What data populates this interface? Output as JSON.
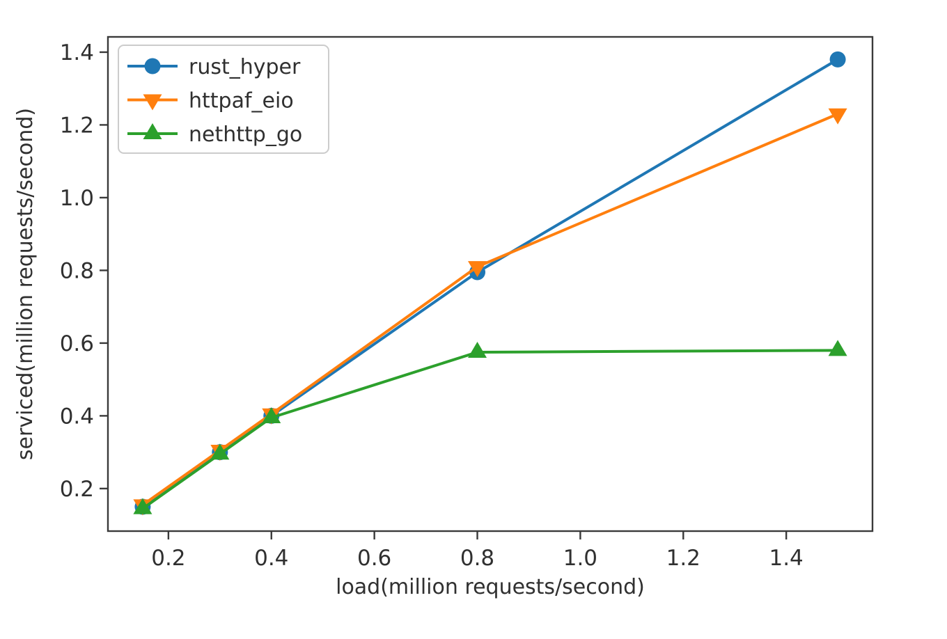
{
  "figure": {
    "background": "#ffffff",
    "axis_color": "#3a3a3a",
    "text_color": "#303030",
    "legend_border_color": "#cccccc",
    "legend_background": "#ffffff"
  },
  "chart_data": {
    "type": "line",
    "title": "",
    "xlabel": "load(million requests/second)",
    "ylabel": "serviced(million requests/second)",
    "x": [
      0.15,
      0.3,
      0.4,
      0.8,
      1.5
    ],
    "series": [
      {
        "name": "rust_hyper",
        "color": "#1f77b4",
        "marker": "circle",
        "values": [
          0.15,
          0.3,
          0.4,
          0.795,
          1.38
        ]
      },
      {
        "name": "httpaf_eio",
        "color": "#ff7f0e",
        "marker": "triangle-down",
        "values": [
          0.155,
          0.305,
          0.405,
          0.81,
          1.23
        ]
      },
      {
        "name": "nethttp_go",
        "color": "#2ca02c",
        "marker": "triangle-up",
        "values": [
          0.145,
          0.295,
          0.395,
          0.575,
          0.58
        ]
      }
    ],
    "xticks": [
      0.2,
      0.4,
      0.6,
      0.8,
      1.0,
      1.2,
      1.4
    ],
    "yticks": [
      0.2,
      0.4,
      0.6,
      0.8,
      1.0,
      1.2,
      1.4
    ],
    "xlim": [
      0.0825,
      1.5675
    ],
    "ylim": [
      0.083,
      1.442
    ],
    "grid": false,
    "legend_position": "upper left",
    "legend": [
      "rust_hyper",
      "httpaf_eio",
      "nethttp_go"
    ]
  }
}
